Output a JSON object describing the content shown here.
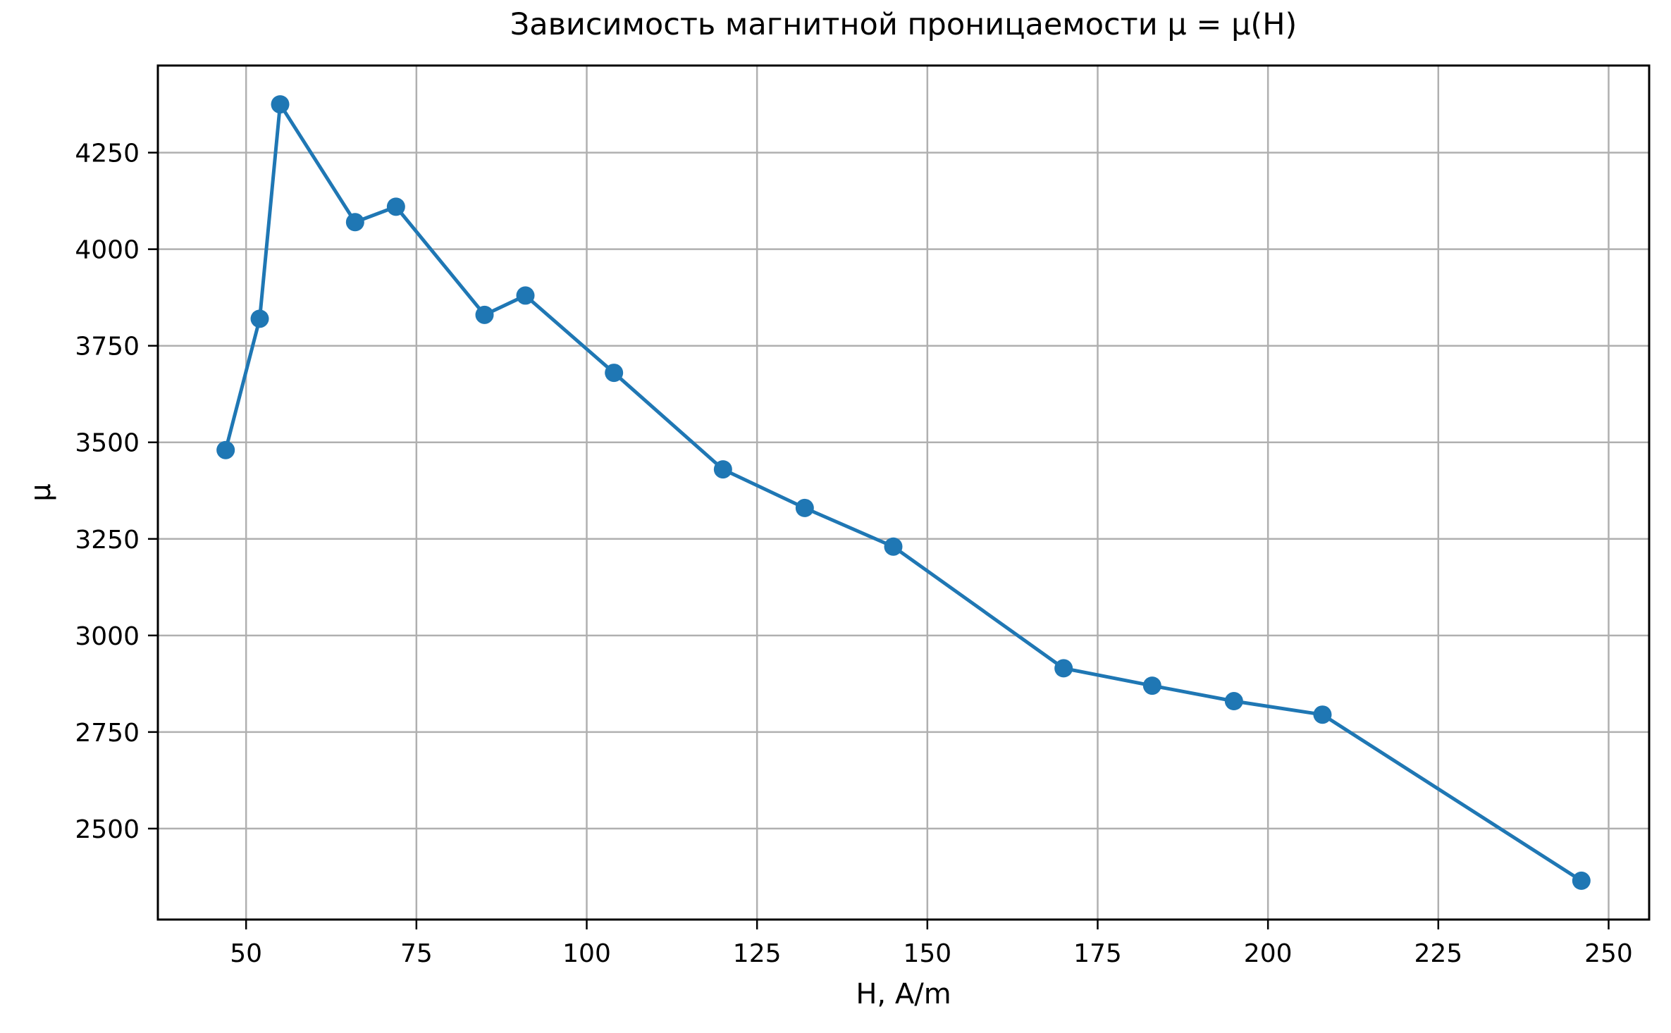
{
  "chart_data": {
    "type": "line",
    "title": "Зависимость магнитной проницаемости μ = μ(H)",
    "xlabel": "H, A/m",
    "ylabel": "μ",
    "series": [
      {
        "name": "mu(H)",
        "x": [
          47,
          52,
          55,
          66,
          72,
          85,
          91,
          104,
          120,
          132,
          145,
          170,
          183,
          195,
          208,
          246
        ],
        "y": [
          3480,
          3820,
          4375,
          4070,
          4110,
          3830,
          3880,
          3680,
          3430,
          3330,
          3230,
          2915,
          2870,
          2830,
          2795,
          2365
        ]
      }
    ],
    "xticks": [
      50,
      75,
      100,
      125,
      150,
      175,
      200,
      225,
      250
    ],
    "yticks": [
      2500,
      2750,
      3000,
      3250,
      3500,
      3750,
      4000,
      4250
    ],
    "xlim": [
      37.05,
      255.95
    ],
    "ylim": [
      2264.5,
      4475.5
    ],
    "grid": true,
    "legend": "none",
    "line_color": "#1f77b4",
    "marker_color": "#1f77b4",
    "grid_color": "#b0b0b0",
    "spine_color": "#000000",
    "background_color": "#ffffff"
  }
}
